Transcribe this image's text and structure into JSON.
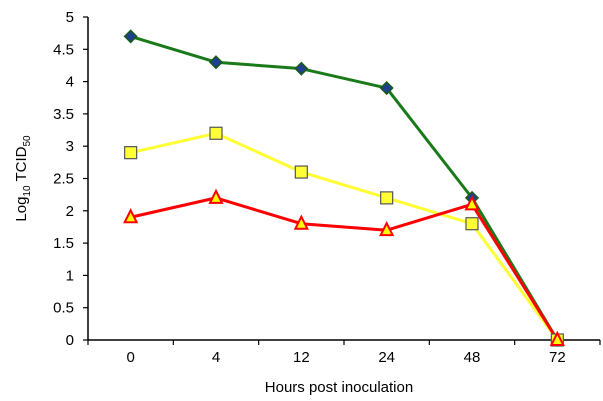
{
  "chart_data": {
    "type": "line",
    "categories": [
      "0",
      "4",
      "12",
      "24",
      "48",
      "72"
    ],
    "xlabel": "Hours post inoculation",
    "ylabel": {
      "prefix": "Log",
      "sub1": "10",
      "mid": " TCID",
      "sub2": "50"
    },
    "ylim": [
      0,
      5
    ],
    "yticks": [
      "0",
      "0.5",
      "1",
      "1.5",
      "2",
      "2.5",
      "3",
      "3.5",
      "4",
      "4.5",
      "5"
    ],
    "grid": false,
    "series": [
      {
        "values": [
          4.7,
          4.3,
          4.2,
          3.9,
          2.2,
          0
        ],
        "line_color": "#1a7a1a",
        "marker": "diamond",
        "marker_color": "#1f3f8f"
      },
      {
        "values": [
          2.9,
          3.2,
          2.6,
          2.2,
          1.8,
          0
        ],
        "line_color": "#ffff33",
        "marker": "square",
        "marker_color": "#ffff33"
      },
      {
        "values": [
          1.9,
          2.2,
          1.8,
          1.7,
          2.1,
          0
        ],
        "line_color": "#ff0000",
        "marker": "triangle",
        "marker_color": "#ffff00"
      }
    ]
  }
}
